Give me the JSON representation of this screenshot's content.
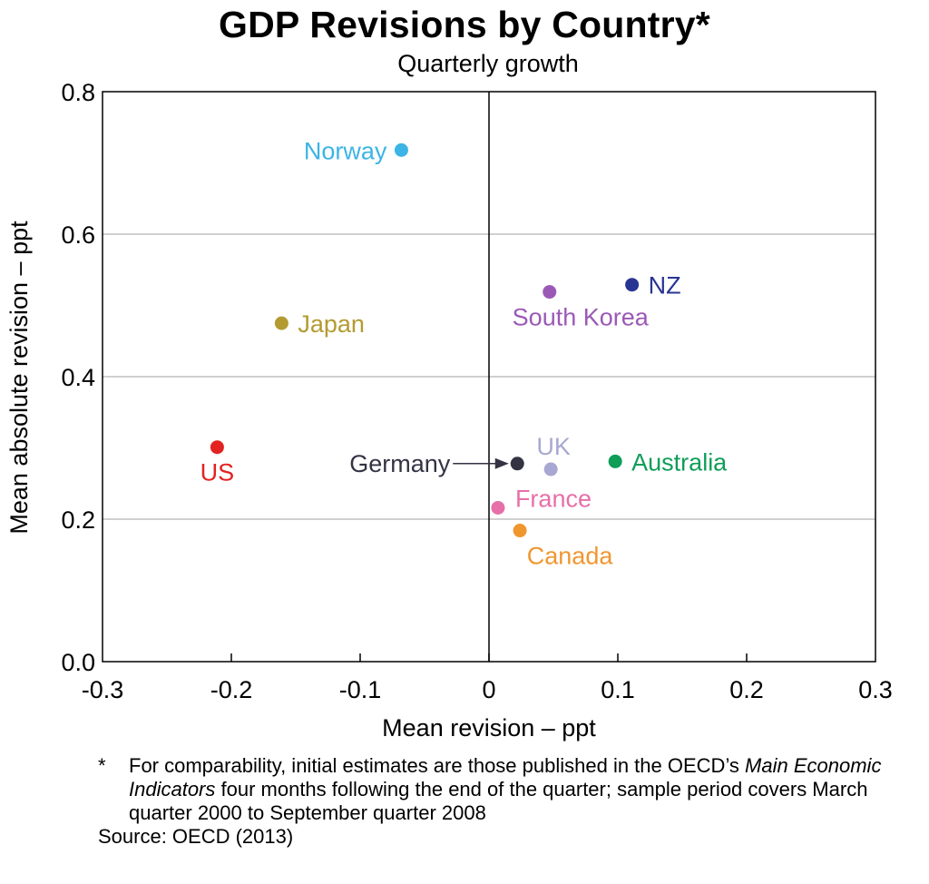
{
  "chart_data": {
    "type": "scatter",
    "title": "GDP Revisions by Country*",
    "subtitle": "Quarterly growth",
    "xlabel": "Mean revision – ppt",
    "ylabel": "Mean absolute revision – ppt",
    "xlim": [
      -0.3,
      0.3
    ],
    "ylim": [
      0.0,
      0.8
    ],
    "xticks": [
      -0.3,
      -0.2,
      -0.1,
      0,
      0.1,
      0.2,
      0.3
    ],
    "xtick_labels": [
      "-0.3",
      "-0.2",
      "-0.1",
      "0",
      "0.1",
      "0.2",
      "0.3"
    ],
    "yticks": [
      0.0,
      0.2,
      0.4,
      0.6,
      0.8
    ],
    "ytick_labels": [
      "0.0",
      "0.2",
      "0.4",
      "0.6",
      "0.8"
    ],
    "grid": "horizontal",
    "points": [
      {
        "label": "Norway",
        "x": -0.068,
        "y": 0.718,
        "color": "#3cb4e5",
        "anchor": "left"
      },
      {
        "label": "NZ",
        "x": 0.111,
        "y": 0.529,
        "color": "#283593",
        "anchor": "right"
      },
      {
        "label": "South Korea",
        "x": 0.047,
        "y": 0.519,
        "color": "#9b59b6",
        "anchor": "below"
      },
      {
        "label": "Japan",
        "x": -0.161,
        "y": 0.475,
        "color": "#b39b32",
        "anchor": "right"
      },
      {
        "label": "US",
        "x": -0.211,
        "y": 0.301,
        "color": "#e32222",
        "anchor": "below"
      },
      {
        "label": "Germany",
        "x": 0.022,
        "y": 0.278,
        "color": "#333344",
        "anchor": "arrow-left"
      },
      {
        "label": "UK",
        "x": 0.048,
        "y": 0.27,
        "color": "#a8a8d2",
        "anchor": "above"
      },
      {
        "label": "Australia",
        "x": 0.098,
        "y": 0.281,
        "color": "#0f9d58",
        "anchor": "right"
      },
      {
        "label": "France",
        "x": 0.007,
        "y": 0.216,
        "color": "#e76fa8",
        "anchor": "right-up"
      },
      {
        "label": "Canada",
        "x": 0.024,
        "y": 0.184,
        "color": "#f0962f",
        "anchor": "below"
      }
    ]
  },
  "footnote": {
    "star": "*",
    "text_before": "For comparability, initial estimates are those published in the OECD’s ",
    "text_italic": "Main Economic Indicators",
    "text_after": " four months following the end of the quarter; sample period covers March quarter 2000 to September quarter 2008",
    "source": "Source: OECD (2013)"
  }
}
